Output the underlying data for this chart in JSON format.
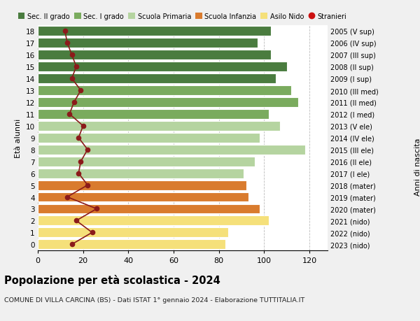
{
  "ages": [
    18,
    17,
    16,
    15,
    14,
    13,
    12,
    11,
    10,
    9,
    8,
    7,
    6,
    5,
    4,
    3,
    2,
    1,
    0
  ],
  "anni_nascita": [
    "2005 (V sup)",
    "2006 (IV sup)",
    "2007 (III sup)",
    "2008 (II sup)",
    "2009 (I sup)",
    "2010 (III med)",
    "2011 (II med)",
    "2012 (I med)",
    "2013 (V ele)",
    "2014 (IV ele)",
    "2015 (III ele)",
    "2016 (II ele)",
    "2017 (I ele)",
    "2018 (mater)",
    "2019 (mater)",
    "2020 (mater)",
    "2021 (nido)",
    "2022 (nido)",
    "2023 (nido)"
  ],
  "bar_values": [
    103,
    97,
    103,
    110,
    105,
    112,
    115,
    102,
    107,
    98,
    118,
    96,
    91,
    92,
    93,
    98,
    102,
    84,
    83
  ],
  "bar_colors": [
    "#4a7c3f",
    "#4a7c3f",
    "#4a7c3f",
    "#4a7c3f",
    "#4a7c3f",
    "#7aab5e",
    "#7aab5e",
    "#7aab5e",
    "#b5d4a0",
    "#b5d4a0",
    "#b5d4a0",
    "#b5d4a0",
    "#b5d4a0",
    "#d97b2e",
    "#d97b2e",
    "#d97b2e",
    "#f5e07a",
    "#f5e07a",
    "#f5e07a"
  ],
  "stranieri_values": [
    12,
    13,
    15,
    17,
    15,
    19,
    16,
    14,
    20,
    18,
    22,
    19,
    18,
    22,
    13,
    26,
    17,
    24,
    15
  ],
  "stranieri_color": "#8b1a1a",
  "legend_labels": [
    "Sec. II grado",
    "Sec. I grado",
    "Scuola Primaria",
    "Scuola Infanzia",
    "Asilo Nido",
    "Stranieri"
  ],
  "legend_colors": [
    "#4a7c3f",
    "#7aab5e",
    "#b5d4a0",
    "#d97b2e",
    "#f5e07a",
    "#cc1111"
  ],
  "title": "Popolazione per età scolastica - 2024",
  "subtitle": "COMUNE DI VILLA CARCINA (BS) - Dati ISTAT 1° gennaio 2024 - Elaborazione TUTTITALIA.IT",
  "ylabel_left": "Età alunni",
  "ylabel_right": "Anni di nascita",
  "xlim": [
    0,
    128
  ],
  "xticks": [
    0,
    20,
    40,
    60,
    80,
    100,
    120
  ],
  "background_color": "#f0f0f0",
  "bar_background": "#ffffff"
}
